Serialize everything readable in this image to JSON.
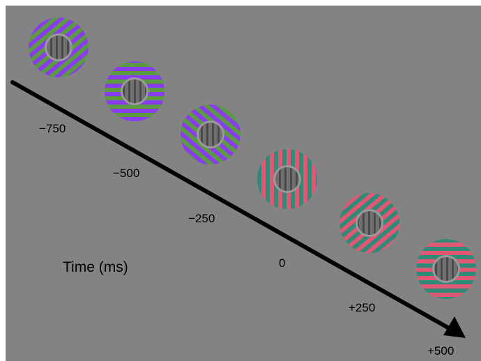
{
  "axis_label": "Time (ms)",
  "colors": {
    "background": "#838383",
    "arrow": "#000000",
    "inner_disc": "#6e6e6e",
    "inner_ring": "#9a9a9a",
    "stripe_phase_a": "#8a3df0",
    "stripe_phase_b": "#5c9a40",
    "stripe_phase_c": "#e25874",
    "stripe_phase_d": "#2f8a78"
  },
  "time_points": [
    {
      "label": "−750",
      "value": -750,
      "outer_orientation": "oblique-right",
      "outer_colors": "purple-green",
      "inner_orientation": "vertical"
    },
    {
      "label": "−500",
      "value": -500,
      "outer_orientation": "horizontal",
      "outer_colors": "purple-green",
      "inner_orientation": "vertical"
    },
    {
      "label": "−250",
      "value": -250,
      "outer_orientation": "oblique-left",
      "outer_colors": "purple-green",
      "inner_orientation": "vertical"
    },
    {
      "label": "0",
      "value": 0,
      "outer_orientation": "vertical",
      "outer_colors": "red-green",
      "inner_orientation": "vertical"
    },
    {
      "label": "+250",
      "value": 250,
      "outer_orientation": "oblique-right",
      "outer_colors": "red-green",
      "inner_orientation": "vertical"
    },
    {
      "label": "+500",
      "value": 500,
      "outer_orientation": "horizontal",
      "outer_colors": "red-green",
      "inner_orientation": "vertical"
    }
  ]
}
